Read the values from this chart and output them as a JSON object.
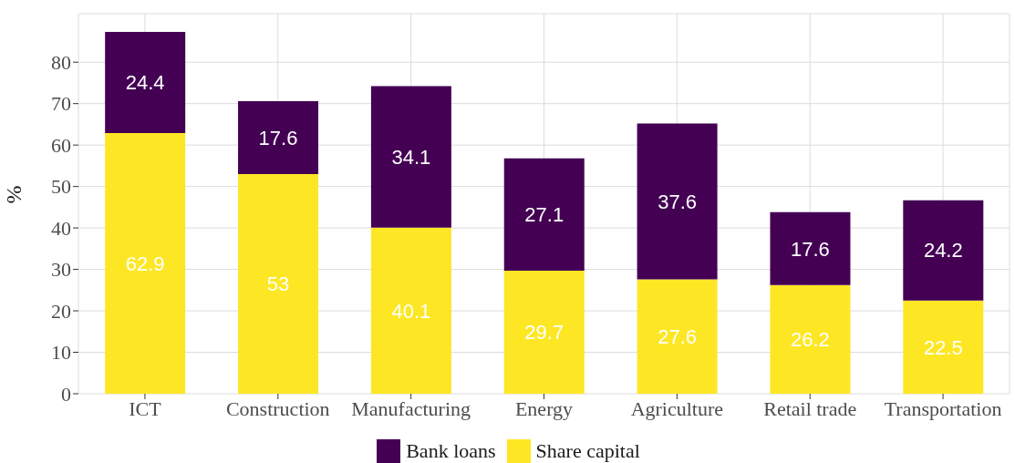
{
  "chart_data": {
    "type": "bar",
    "ylabel": "%",
    "categories": [
      "ICT",
      "Construction",
      "Manufacturing",
      "Energy",
      "Agriculture",
      "Retail trade",
      "Transportation"
    ],
    "series": [
      {
        "name": "Share capital",
        "color": "#fde725",
        "values": [
          62.9,
          53,
          40.1,
          29.7,
          27.6,
          26.2,
          22.5
        ]
      },
      {
        "name": "Bank loans",
        "color": "#440154",
        "values": [
          24.4,
          17.6,
          34.1,
          27.1,
          37.6,
          17.6,
          24.2
        ]
      }
    ],
    "stacked": true,
    "data_labels": true,
    "ylim": [
      0,
      91.7
    ],
    "yticks": [
      0,
      10,
      20,
      30,
      40,
      50,
      60,
      70,
      80
    ],
    "grid": true,
    "legend": "bottom"
  }
}
